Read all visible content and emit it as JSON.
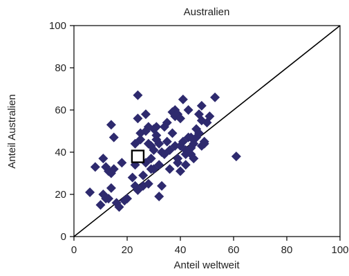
{
  "chart_data": {
    "type": "scatter",
    "title": "Australien",
    "xlabel": "Anteil weltweit",
    "ylabel": "Anteil Australien",
    "xlim": [
      0,
      100
    ],
    "ylim": [
      0,
      100
    ],
    "xticks": [
      "0",
      "20",
      "40",
      "60",
      "80",
      "100"
    ],
    "yticks": [
      "0",
      "20",
      "40",
      "60",
      "80",
      "100"
    ],
    "grid": false,
    "reference_line": {
      "from": [
        0,
        0
      ],
      "to": [
        100,
        100
      ],
      "color": "#000000"
    },
    "marker_color": "#2e2a6e",
    "highlight_color": "#000000",
    "highlight": {
      "x": 24,
      "y": 38
    },
    "points": [
      [
        6,
        21
      ],
      [
        8,
        33
      ],
      [
        10,
        15
      ],
      [
        11,
        20
      ],
      [
        11,
        37
      ],
      [
        12,
        18
      ],
      [
        12,
        33
      ],
      [
        13,
        31
      ],
      [
        13,
        18
      ],
      [
        14,
        30
      ],
      [
        14,
        53
      ],
      [
        14,
        23
      ],
      [
        15,
        47
      ],
      [
        15,
        32
      ],
      [
        16,
        16
      ],
      [
        17,
        14
      ],
      [
        18,
        35
      ],
      [
        19,
        17
      ],
      [
        20,
        18
      ],
      [
        22,
        28
      ],
      [
        23,
        24
      ],
      [
        23,
        34
      ],
      [
        23,
        44
      ],
      [
        24,
        67
      ],
      [
        24,
        22
      ],
      [
        24,
        56
      ],
      [
        25,
        49
      ],
      [
        25,
        46
      ],
      [
        26,
        24
      ],
      [
        26,
        29
      ],
      [
        27,
        50
      ],
      [
        27,
        35
      ],
      [
        27,
        58
      ],
      [
        28,
        25
      ],
      [
        28,
        44
      ],
      [
        28,
        52
      ],
      [
        29,
        37
      ],
      [
        29,
        32
      ],
      [
        29,
        43
      ],
      [
        30,
        41
      ],
      [
        30,
        51
      ],
      [
        30,
        32
      ],
      [
        31,
        46
      ],
      [
        31,
        48
      ],
      [
        31,
        52
      ],
      [
        32,
        34
      ],
      [
        32,
        44
      ],
      [
        32,
        19
      ],
      [
        33,
        40
      ],
      [
        33,
        24
      ],
      [
        34,
        52
      ],
      [
        34,
        39
      ],
      [
        35,
        54
      ],
      [
        35,
        45
      ],
      [
        36,
        41
      ],
      [
        36,
        32
      ],
      [
        37,
        59
      ],
      [
        37,
        49
      ],
      [
        38,
        60
      ],
      [
        38,
        57
      ],
      [
        38,
        43
      ],
      [
        39,
        58
      ],
      [
        39,
        37
      ],
      [
        39,
        35
      ],
      [
        40,
        43
      ],
      [
        40,
        56
      ],
      [
        40,
        31
      ],
      [
        41,
        65
      ],
      [
        41,
        45
      ],
      [
        42,
        39
      ],
      [
        42,
        41
      ],
      [
        42,
        34
      ],
      [
        43,
        60
      ],
      [
        43,
        47
      ],
      [
        44,
        42
      ],
      [
        44,
        39
      ],
      [
        44,
        47
      ],
      [
        45,
        44
      ],
      [
        45,
        37
      ],
      [
        46,
        51
      ],
      [
        46,
        47
      ],
      [
        47,
        58
      ],
      [
        47,
        49
      ],
      [
        48,
        55
      ],
      [
        48,
        43
      ],
      [
        48,
        62
      ],
      [
        49,
        44
      ],
      [
        49,
        45
      ],
      [
        50,
        54
      ],
      [
        51,
        57
      ],
      [
        53,
        66
      ],
      [
        61,
        38
      ]
    ]
  }
}
